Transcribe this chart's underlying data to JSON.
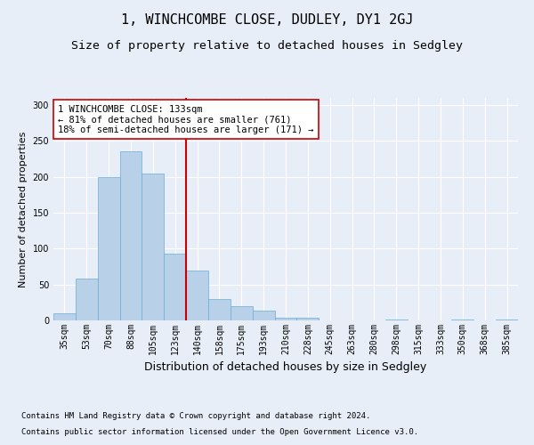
{
  "title": "1, WINCHCOMBE CLOSE, DUDLEY, DY1 2GJ",
  "subtitle": "Size of property relative to detached houses in Sedgley",
  "xlabel": "Distribution of detached houses by size in Sedgley",
  "ylabel": "Number of detached properties",
  "categories": [
    "35sqm",
    "53sqm",
    "70sqm",
    "88sqm",
    "105sqm",
    "123sqm",
    "140sqm",
    "158sqm",
    "175sqm",
    "193sqm",
    "210sqm",
    "228sqm",
    "245sqm",
    "263sqm",
    "280sqm",
    "298sqm",
    "315sqm",
    "333sqm",
    "350sqm",
    "368sqm",
    "385sqm"
  ],
  "values": [
    10,
    58,
    200,
    235,
    205,
    93,
    70,
    30,
    20,
    14,
    4,
    4,
    0,
    0,
    0,
    1,
    0,
    0,
    1,
    0,
    1
  ],
  "bar_color": "#b8d0e8",
  "bar_edge_color": "#6aadd5",
  "vline_x_index": 6,
  "vline_color": "#cc0000",
  "annotation_text": "1 WINCHCOMBE CLOSE: 133sqm\n← 81% of detached houses are smaller (761)\n18% of semi-detached houses are larger (171) →",
  "annotation_box_color": "#ffffff",
  "annotation_box_edge_color": "#cc0000",
  "footnote1": "Contains HM Land Registry data © Crown copyright and database right 2024.",
  "footnote2": "Contains public sector information licensed under the Open Government Licence v3.0.",
  "ylim": [
    0,
    310
  ],
  "background_color": "#e8eef8",
  "grid_color": "#ffffff",
  "title_fontsize": 11,
  "subtitle_fontsize": 9.5,
  "xlabel_fontsize": 9,
  "ylabel_fontsize": 8,
  "tick_fontsize": 7,
  "footnote_fontsize": 6.5,
  "annotation_fontsize": 7.5
}
